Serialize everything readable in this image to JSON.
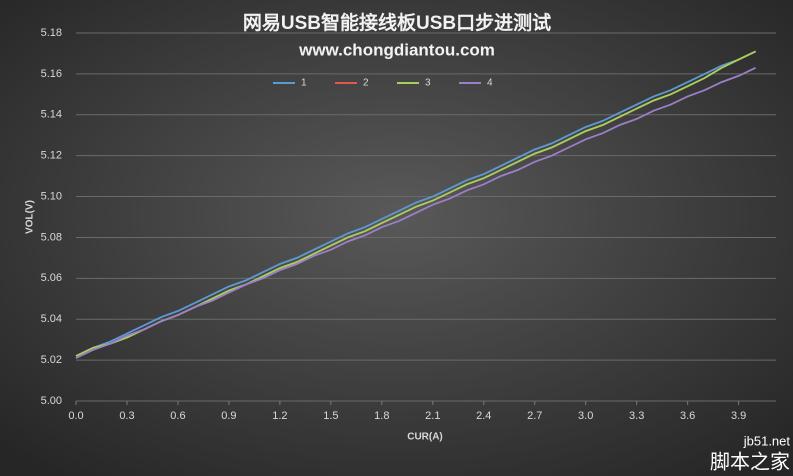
{
  "chart_data": {
    "type": "line",
    "title": "网易USB智能接线板USB口步进测试",
    "subtitle": "www.chongdiantou.com",
    "x_label": "CUR(A)",
    "y_label": "VOL(V)",
    "watermark": "jb51.net",
    "watermark_2": "脚本之家",
    "legend": "top",
    "grid": true,
    "x": [
      0,
      0.1,
      0.2,
      0.3,
      0.4,
      0.5,
      0.6,
      0.7,
      0.8,
      0.9,
      1.0,
      1.1,
      1.2,
      1.3,
      1.4,
      1.5,
      1.6,
      1.7,
      1.8,
      1.9,
      2.0,
      2.1,
      2.2,
      2.3,
      2.4,
      2.5,
      2.6,
      2.7,
      2.8,
      2.9,
      3.0,
      3.1,
      3.2,
      3.3,
      3.4,
      3.5,
      3.6,
      3.7,
      3.8,
      3.9,
      4.0
    ],
    "xlim": [
      0,
      4.12
    ],
    "xticks": [
      {
        "value": 0,
        "label": "0.0"
      },
      0.3,
      0.6,
      0.9,
      1.2,
      1.5,
      1.8,
      2.1,
      2.4,
      2.7,
      {
        "value": 3,
        "label": "3.0"
      },
      3.3,
      3.6,
      3.9
    ],
    "ylim": [
      5.0,
      5.18
    ],
    "yticks": [
      {
        "value": 5,
        "label": "5.00"
      },
      5.02,
      5.04,
      5.06,
      5.08,
      {
        "value": 5.1,
        "label": "5.10"
      },
      5.12,
      5.14,
      5.16,
      5.18
    ],
    "series": [
      {
        "name": "1",
        "color": "#5b9bd5",
        "values": [
          5.022,
          5.026,
          5.029,
          5.033,
          5.037,
          5.041,
          5.044,
          5.048,
          5.052,
          5.056,
          5.059,
          5.063,
          5.067,
          5.07,
          5.074,
          5.078,
          5.082,
          5.085,
          5.089,
          5.093,
          5.097,
          5.1,
          5.104,
          5.108,
          5.111,
          5.115,
          5.119,
          5.123,
          5.126,
          5.13,
          5.134,
          5.137,
          5.141,
          5.145,
          5.149,
          5.152,
          5.156,
          5.16,
          5.164,
          5.167,
          5.171
        ]
      },
      {
        "name": "2",
        "color": "#e05a4a",
        "values": [
          5.022,
          5.026,
          5.028,
          5.031,
          5.035,
          5.039,
          5.042,
          5.046,
          5.05,
          5.054,
          5.057,
          5.061,
          5.065,
          5.068,
          5.072,
          5.076,
          5.08,
          5.083,
          5.087,
          5.091,
          5.095,
          5.098,
          5.102,
          5.106,
          5.109,
          5.113,
          5.117,
          5.121,
          5.124,
          5.128,
          5.132,
          5.135,
          5.139,
          5.143,
          5.147,
          5.15,
          5.154,
          5.158,
          5.163,
          5.167,
          5.171
        ]
      },
      {
        "name": "3",
        "color": "#a5d05c",
        "values": [
          5.022,
          5.026,
          5.028,
          5.031,
          5.035,
          5.039,
          5.042,
          5.046,
          5.05,
          5.054,
          5.057,
          5.061,
          5.065,
          5.068,
          5.072,
          5.076,
          5.08,
          5.083,
          5.087,
          5.091,
          5.095,
          5.098,
          5.102,
          5.106,
          5.109,
          5.113,
          5.117,
          5.121,
          5.124,
          5.128,
          5.132,
          5.135,
          5.139,
          5.143,
          5.147,
          5.15,
          5.154,
          5.158,
          5.163,
          5.167,
          5.171
        ]
      },
      {
        "name": "4",
        "color": "#9b7fc8",
        "values": [
          5.021,
          5.025,
          5.028,
          5.032,
          5.035,
          5.039,
          5.042,
          5.046,
          5.049,
          5.053,
          5.057,
          5.06,
          5.064,
          5.067,
          5.071,
          5.074,
          5.078,
          5.081,
          5.085,
          5.088,
          5.092,
          5.096,
          5.099,
          5.103,
          5.106,
          5.11,
          5.113,
          5.117,
          5.12,
          5.124,
          5.128,
          5.131,
          5.135,
          5.138,
          5.142,
          5.145,
          5.149,
          5.152,
          5.156,
          5.159,
          5.163
        ]
      }
    ]
  }
}
